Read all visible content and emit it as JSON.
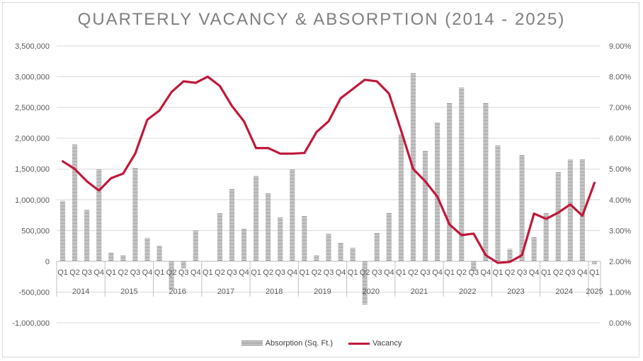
{
  "chart_data": {
    "type": "bar+line",
    "title": "QUARTERLY VACANCY & ABSORPTION (2014 - 2025)",
    "quarter_labels": [
      "Q1",
      "Q2",
      "Q3",
      "Q4",
      "Q1",
      "Q2",
      "Q3",
      "Q4",
      "Q1",
      "Q2",
      "Q3",
      "Q4",
      "Q1",
      "Q2",
      "Q3",
      "Q4",
      "Q1",
      "Q2",
      "Q3",
      "Q4",
      "Q1",
      "Q2",
      "Q3",
      "Q4",
      "Q1",
      "Q2",
      "Q3",
      "Q4",
      "Q1",
      "Q2",
      "Q3",
      "Q4",
      "Q1",
      "Q2",
      "Q3",
      "Q4",
      "Q1",
      "Q2",
      "Q3",
      "Q4",
      "Q1",
      "Q2",
      "Q3",
      "Q4",
      "Q1"
    ],
    "years": [
      "2014",
      "2015",
      "2016",
      "2017",
      "2018",
      "2019",
      "2020",
      "2021",
      "2022",
      "2023",
      "2024",
      "2025"
    ],
    "series": [
      {
        "name": "Absorption (Sq. Ft.)",
        "axis": "left",
        "values": [
          980000,
          1900000,
          840000,
          1500000,
          140000,
          100000,
          1520000,
          380000,
          250000,
          -450000,
          -120000,
          500000,
          0,
          780000,
          1170000,
          530000,
          1390000,
          1110000,
          710000,
          1500000,
          740000,
          100000,
          450000,
          300000,
          220000,
          -700000,
          460000,
          790000,
          2060000,
          3060000,
          1800000,
          2260000,
          2570000,
          2820000,
          -150000,
          2570000,
          1880000,
          200000,
          1730000,
          390000,
          790000,
          1450000,
          1650000,
          1660000,
          -50000
        ]
      },
      {
        "name": "Vacancy",
        "axis": "right",
        "values": [
          5.25,
          5.0,
          4.6,
          4.3,
          4.7,
          4.85,
          5.5,
          6.6,
          6.9,
          7.5,
          7.85,
          7.8,
          8.0,
          7.7,
          7.05,
          6.55,
          5.68,
          5.68,
          5.5,
          5.5,
          5.52,
          6.2,
          6.55,
          7.3,
          7.6,
          7.9,
          7.85,
          7.45,
          6.25,
          5.0,
          4.6,
          4.1,
          3.2,
          2.85,
          2.9,
          2.2,
          1.95,
          1.98,
          2.2,
          3.55,
          3.38,
          3.58,
          3.85,
          3.48,
          4.55
        ]
      }
    ],
    "y_left": {
      "min": -1000000,
      "max": 3500000,
      "step": 500000,
      "ticks": [
        "3,500,000",
        "3,000,000",
        "2,500,000",
        "2,000,000",
        "1,500,000",
        "1,000,000",
        "500,000",
        "0",
        "-500,000",
        "-1,000,000"
      ]
    },
    "y_right": {
      "min": 0,
      "max": 9,
      "step": 1,
      "ticks": [
        "9.00%",
        "8.00%",
        "7.00%",
        "6.00%",
        "5.00%",
        "4.00%",
        "3.00%",
        "2.00%",
        "1.00%",
        "0.00%"
      ]
    },
    "grid": true,
    "legend_position": "bottom",
    "colors": {
      "bar": "#8c8c8c",
      "line": "#c0183a",
      "grid": "#d9d9d9",
      "text": "#595959"
    }
  },
  "legend": {
    "absorption_label": "Absorption (Sq. Ft.)",
    "vacancy_label": "Vacancy"
  }
}
